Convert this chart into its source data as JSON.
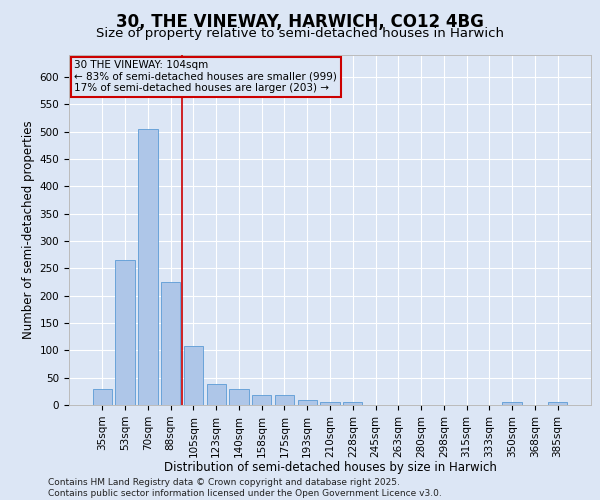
{
  "title1": "30, THE VINEWAY, HARWICH, CO12 4BG",
  "title2": "Size of property relative to semi-detached houses in Harwich",
  "xlabel": "Distribution of semi-detached houses by size in Harwich",
  "ylabel": "Number of semi-detached properties",
  "annotation_line1": "30 THE VINEWAY: 104sqm",
  "annotation_line2": "← 83% of semi-detached houses are smaller (999)",
  "annotation_line3": "17% of semi-detached houses are larger (203) →",
  "footer1": "Contains HM Land Registry data © Crown copyright and database right 2025.",
  "footer2": "Contains public sector information licensed under the Open Government Licence v3.0.",
  "categories": [
    "35sqm",
    "53sqm",
    "70sqm",
    "88sqm",
    "105sqm",
    "123sqm",
    "140sqm",
    "158sqm",
    "175sqm",
    "193sqm",
    "210sqm",
    "228sqm",
    "245sqm",
    "263sqm",
    "280sqm",
    "298sqm",
    "315sqm",
    "333sqm",
    "350sqm",
    "368sqm",
    "385sqm"
  ],
  "values": [
    30,
    265,
    505,
    225,
    108,
    38,
    30,
    18,
    18,
    10,
    5,
    5,
    0,
    0,
    0,
    0,
    0,
    0,
    5,
    0,
    5
  ],
  "bar_color": "#aec6e8",
  "bar_edge_color": "#5b9bd5",
  "ref_bar_index": 4,
  "reference_line_color": "#cc0000",
  "ylim_max": 640,
  "yticks": [
    0,
    50,
    100,
    150,
    200,
    250,
    300,
    350,
    400,
    450,
    500,
    550,
    600
  ],
  "bg_color": "#dce6f5",
  "grid_color": "#ffffff",
  "annotation_box_edge_color": "#cc0000",
  "title_fontsize": 12,
  "subtitle_fontsize": 9.5,
  "axis_label_fontsize": 8.5,
  "tick_fontsize": 7.5,
  "annotation_fontsize": 7.5,
  "footer_fontsize": 6.5
}
